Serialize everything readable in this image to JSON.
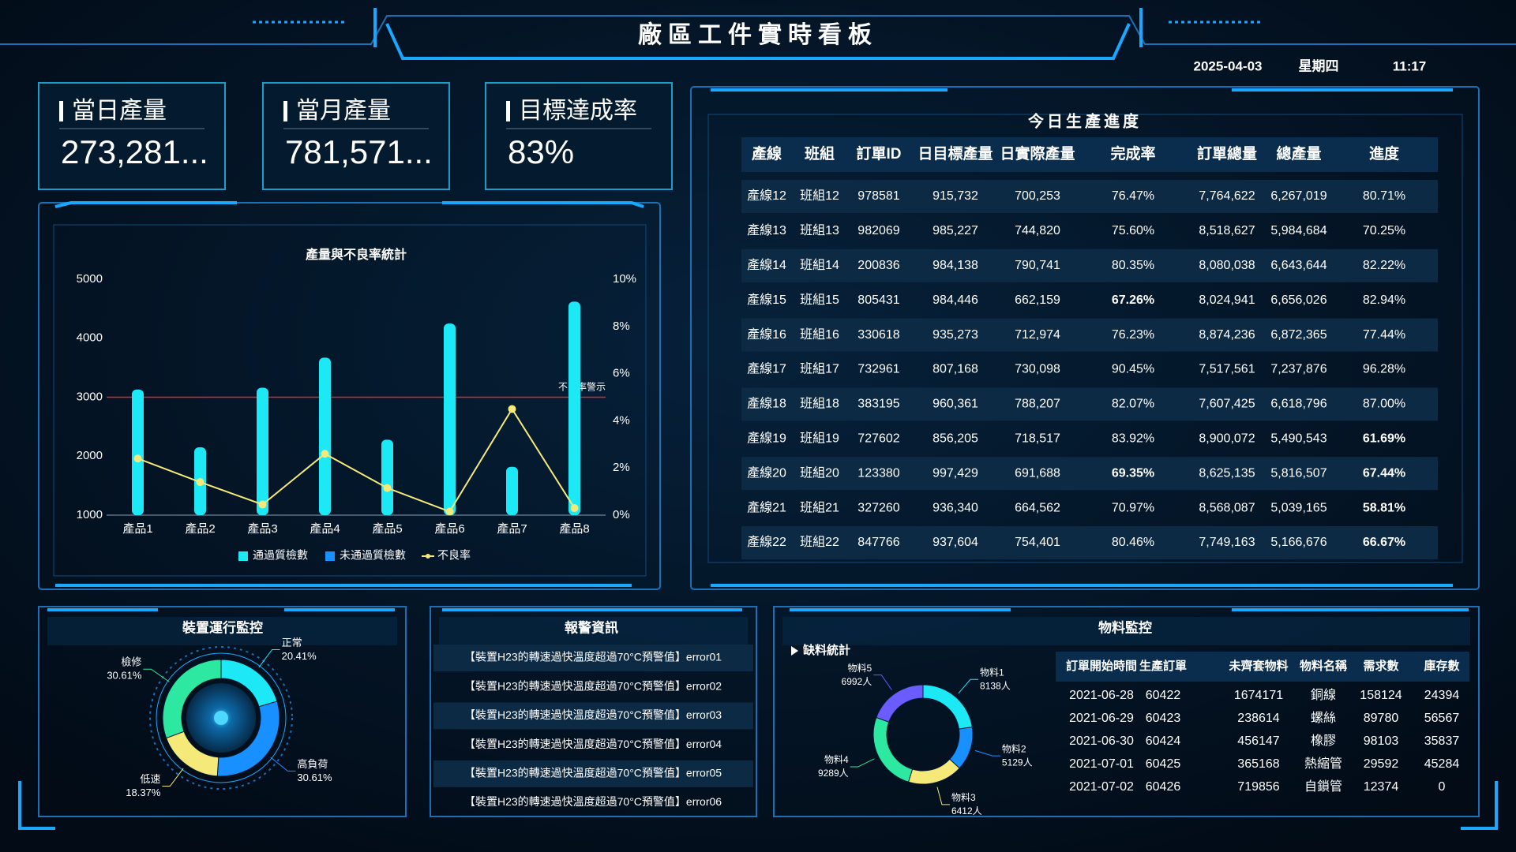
{
  "header": {
    "title": "廠區工件實時看板",
    "date": "2025-04-03",
    "weekday": "星期四",
    "time": "11:17"
  },
  "kpis": [
    {
      "label": "當日產量",
      "value": "273,281..."
    },
    {
      "label": "當月產量",
      "value": "781,571..."
    },
    {
      "label": "目標達成率",
      "value": "83%"
    }
  ],
  "production_chart": {
    "type": "bar",
    "title": "產量與不良率統計",
    "categories": [
      "產品1",
      "產品2",
      "產品3",
      "產品4",
      "產品5",
      "產品6",
      "產品7",
      "產品8"
    ],
    "series": [
      {
        "name": "通過質檢數",
        "color": "#1de9f6",
        "values": [
          3130,
          2150,
          3160,
          3670,
          2280,
          4250,
          1820,
          4620
        ]
      },
      {
        "name": "未通過質檢數",
        "color": "#1890ff",
        "values": [
          null,
          null,
          null,
          null,
          null,
          null,
          null,
          null
        ]
      },
      {
        "name": "不良率",
        "color": "#f5e97a",
        "type": "line",
        "axis": "y2",
        "values": [
          2.4,
          1.4,
          0.45,
          2.6,
          1.15,
          0.15,
          4.5,
          0.3
        ]
      }
    ],
    "ylim": [
      1000,
      5000
    ],
    "yticks": [
      1000,
      2000,
      3000,
      4000,
      5000
    ],
    "y2lim": [
      0,
      10
    ],
    "y2ticks": [
      {
        "value": 0,
        "label": "0%"
      },
      {
        "value": 2,
        "label": "2%"
      },
      {
        "value": 4,
        "label": "4%"
      },
      {
        "value": 6,
        "label": "6%"
      },
      {
        "value": 8,
        "label": "8%"
      },
      {
        "value": 10,
        "label": "10%"
      }
    ],
    "annotations": [
      {
        "text": "不良率警示",
        "y": 3000,
        "color": "#d42b2b"
      }
    ]
  },
  "progress_table": {
    "title": "今日生產進度",
    "columns": [
      "產線",
      "班組",
      "訂單ID",
      "日目標產量",
      "日實際產量",
      "完成率",
      "訂單總量",
      "總產量",
      "進度"
    ],
    "rows": [
      [
        "產線12",
        "班組12",
        "978581",
        "915,732",
        "700,253",
        "76.47%",
        "7,764,622",
        "6,267,019",
        "80.71%"
      ],
      [
        "產線13",
        "班組13",
        "982069",
        "985,227",
        "744,820",
        "75.60%",
        "8,518,627",
        "5,984,684",
        "70.25%"
      ],
      [
        "產線14",
        "班組14",
        "200836",
        "984,138",
        "790,741",
        "80.35%",
        "8,080,038",
        "6,643,644",
        "82.22%"
      ],
      [
        "產線15",
        "班組15",
        "805431",
        "984,446",
        "662,159",
        "67.26%",
        "8,024,941",
        "6,656,026",
        "82.94%"
      ],
      [
        "產線16",
        "班組16",
        "330618",
        "935,273",
        "712,974",
        "76.23%",
        "8,874,236",
        "6,872,365",
        "77.44%"
      ],
      [
        "產線17",
        "班組17",
        "732961",
        "807,168",
        "730,098",
        "90.45%",
        "7,517,561",
        "7,237,876",
        "96.28%"
      ],
      [
        "產線18",
        "班組18",
        "383195",
        "960,361",
        "788,207",
        "82.07%",
        "7,607,425",
        "6,618,796",
        "87.00%"
      ],
      [
        "產線19",
        "班組19",
        "727602",
        "856,205",
        "718,517",
        "83.92%",
        "8,900,072",
        "5,490,543",
        "61.69%"
      ],
      [
        "產線20",
        "班組20",
        "123380",
        "997,429",
        "691,688",
        "69.35%",
        "8,625,135",
        "5,816,507",
        "67.44%"
      ],
      [
        "產線21",
        "班組21",
        "327260",
        "936,340",
        "664,562",
        "70.97%",
        "8,568,087",
        "5,039,165",
        "58.81%"
      ],
      [
        "產線22",
        "班組22",
        "847766",
        "937,604",
        "754,401",
        "80.46%",
        "7,749,163",
        "5,166,676",
        "66.67%"
      ]
    ],
    "column_colors": [
      "#ffffff",
      "#ffffff",
      "#ffffff",
      "#f5e97a",
      "#f5e97a",
      "#ffffff",
      "#1de9f6",
      "#1de9f6",
      "#ffffff"
    ],
    "alert_color": "#ff2a2a",
    "alerts": [
      [
        3,
        5
      ],
      [
        7,
        8
      ],
      [
        8,
        5
      ],
      [
        8,
        8
      ],
      [
        9,
        8
      ],
      [
        10,
        8
      ]
    ]
  },
  "device_monitor": {
    "type": "pie",
    "title": "裝置運行監控",
    "categories": [
      "正常",
      "高負荷",
      "低速",
      "檢修"
    ],
    "values": [
      20.41,
      30.61,
      18.37,
      30.61
    ],
    "value_labels": [
      "20.41%",
      "30.61%",
      "18.37%",
      "30.61%"
    ],
    "colors": [
      "#1de9f6",
      "#1890ff",
      "#f5e97a",
      "#2de8a0"
    ]
  },
  "alarms": {
    "title": "報警資訊",
    "items": [
      "【裝置H23的轉速過快溫度超過70°C預警值】error01",
      "【裝置H23的轉速過快溫度超過70°C預警值】error02",
      "【裝置H23的轉速過快溫度超過70°C預警值】error03",
      "【裝置H23的轉速過快溫度超過70°C預警值】error04",
      "【裝置H23的轉速過快溫度超過70°C預警值】error05",
      "【裝置H23的轉速過快溫度超過70°C預警值】error06"
    ]
  },
  "material_monitor": {
    "title": "物料監控",
    "shortage": {
      "type": "pie",
      "title": "缺料統計",
      "categories": [
        "物料1",
        "物料2",
        "物料3",
        "物料4",
        "物料5"
      ],
      "values": [
        8138,
        5129,
        6412,
        9289,
        6992
      ],
      "value_labels": [
        "8138人",
        "5129人",
        "6412人",
        "9289人",
        "6992人"
      ],
      "colors": [
        "#1de9f6",
        "#1890ff",
        "#f5e97a",
        "#2de8a0",
        "#6a5cff"
      ]
    },
    "table": {
      "columns": [
        "訂單開始時間",
        "生產訂單",
        "未齊套物料",
        "物料名稱",
        "需求數",
        "庫存數"
      ],
      "rows": [
        [
          "2021-06-28",
          "60422",
          "1674171",
          "銅線",
          "158124",
          "24394"
        ],
        [
          "2021-06-29",
          "60423",
          "238614",
          "螺絲",
          "89780",
          "56567"
        ],
        [
          "2021-06-30",
          "60424",
          "456147",
          "橡膠",
          "98103",
          "35837"
        ],
        [
          "2021-07-01",
          "60425",
          "365168",
          "熱縮管",
          "29592",
          "45284"
        ],
        [
          "2021-07-02",
          "60426",
          "719856",
          "自鎖管",
          "12374",
          "0"
        ]
      ],
      "column_colors": [
        "#ffffff",
        "#ffffff",
        "#f5e97a",
        "#f5e97a",
        "#1de9f6",
        "#1de9f6"
      ],
      "alert_color": "#ff2a2a",
      "alerts": [
        [
          0,
          5
        ],
        [
          1,
          5
        ],
        [
          2,
          5
        ],
        [
          4,
          5
        ]
      ]
    }
  }
}
